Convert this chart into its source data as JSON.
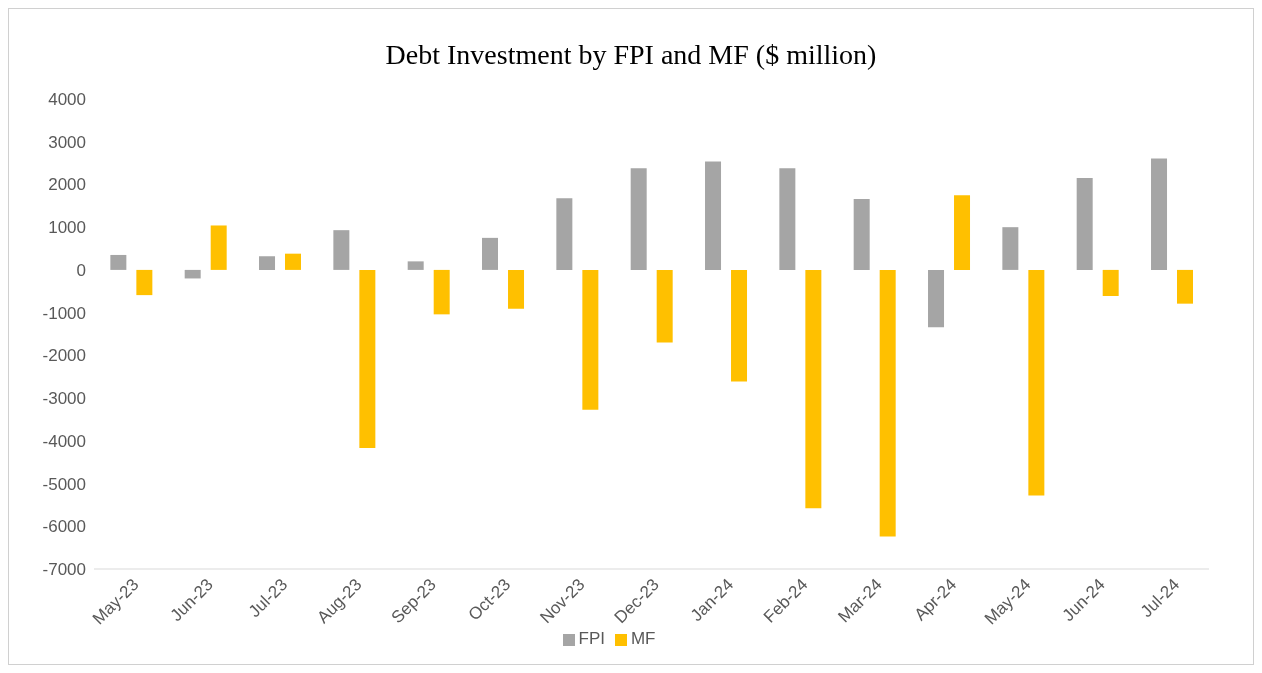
{
  "chart_data": {
    "type": "bar",
    "title": "Debt Investment by FPI and MF ($ million)",
    "categories": [
      "May-23",
      "Jun-23",
      "Jul-23",
      "Aug-23",
      "Sep-23",
      "Oct-23",
      "Nov-23",
      "Dec-23",
      "Jan-24",
      "Feb-24",
      "Mar-24",
      "Apr-24",
      "May-24",
      "Jun-24",
      "Jul-24"
    ],
    "series": [
      {
        "name": "FPI",
        "color": "#a5a5a5",
        "values": [
          350,
          -200,
          320,
          930,
          200,
          750,
          1680,
          2380,
          2540,
          2380,
          1660,
          -1340,
          1000,
          2150,
          2610
        ]
      },
      {
        "name": "MF",
        "color": "#ffc000",
        "values": [
          -590,
          1040,
          380,
          -4170,
          -1040,
          -910,
          -3270,
          -1700,
          -2610,
          -5580,
          -6240,
          1750,
          -5280,
          -610,
          -790
        ]
      }
    ],
    "ylim": [
      -7000,
      4000
    ],
    "yticks": [
      -7000,
      -6000,
      -5000,
      -4000,
      -3000,
      -2000,
      -1000,
      0,
      1000,
      2000,
      3000,
      4000
    ],
    "legend": "bottom"
  }
}
